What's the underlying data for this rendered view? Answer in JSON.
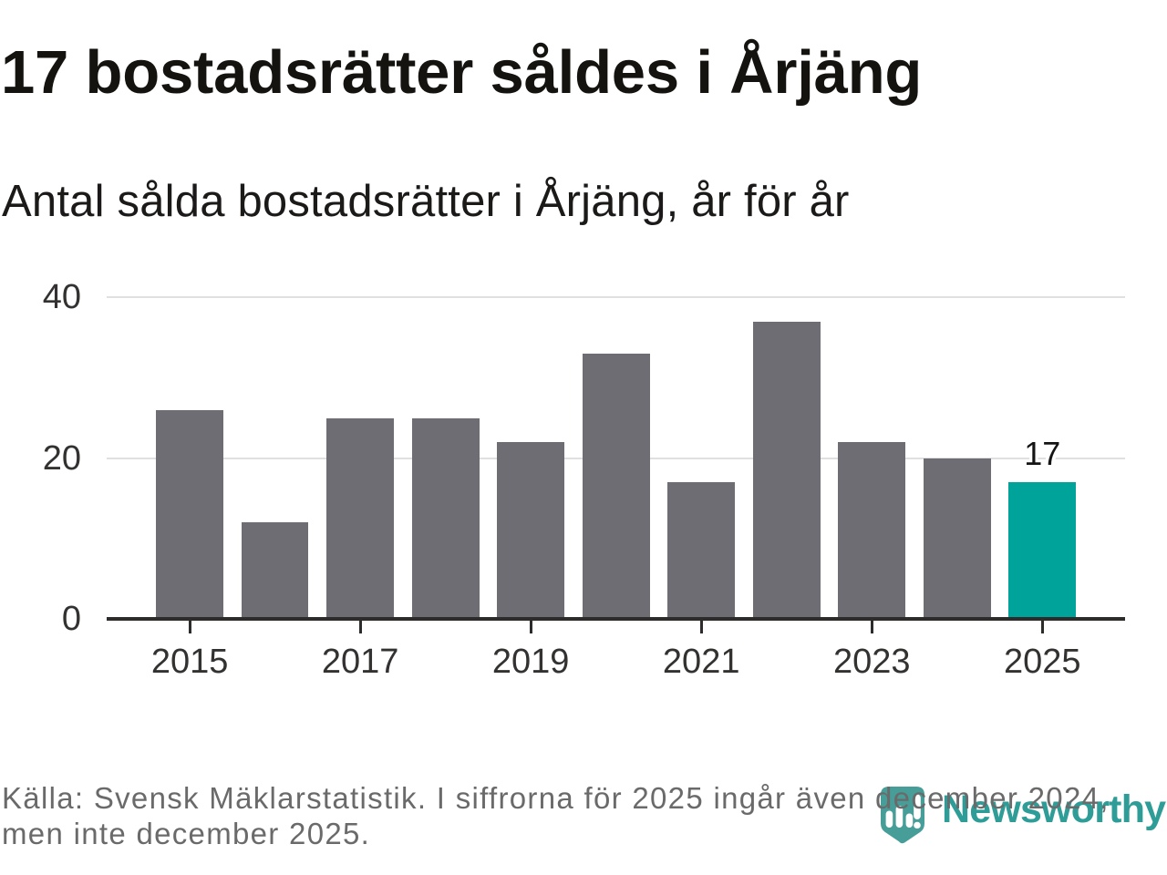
{
  "title": "17 bostadsrätter såldes i Årjäng",
  "subtitle": "Antal sålda bostadsrätter i Årjäng, år för år",
  "footer": {
    "source_lines": [
      "Källa: Svensk Mäklarstatistik. I siffrorna för 2025 ingår även december 2024,",
      "men inte december 2025."
    ]
  },
  "logo": {
    "wordmark": "Newsworthy",
    "icon": "newsworthy-speech-bubble-bar-chart-icon"
  },
  "chart_data": {
    "type": "bar",
    "title": "17 bostadsrätter såldes i Årjäng",
    "subtitle": "Antal sålda bostadsrätter i Årjäng, år för år",
    "categories": [
      2015,
      2016,
      2017,
      2018,
      2019,
      2020,
      2021,
      2022,
      2023,
      2024,
      2025
    ],
    "values": [
      26,
      12,
      25,
      25,
      22,
      33,
      17,
      37,
      22,
      20,
      17
    ],
    "highlighted_category": 2025,
    "bar_label": {
      "category": 2025,
      "text": "17"
    },
    "xlabel": "",
    "ylabel": "",
    "ylim": [
      0,
      40
    ],
    "yticks": [
      0,
      20,
      40
    ],
    "xticks": [
      2015,
      2017,
      2019,
      2021,
      2023,
      2025
    ],
    "grid": "horizontal",
    "legend": "none"
  },
  "colors": {
    "bar_default": "#6e6d73",
    "bar_highlight": "#00a399",
    "gridline": "#e0e0e0",
    "axis": "#2d2c2b",
    "tick_label": "#333230",
    "title": "#151310",
    "subtitle": "#1c1a19",
    "footer_text": "#6a6a6a",
    "logo_teal": "#2f9d97",
    "logo_icon_teal": "#479e99",
    "background": "#ffffff"
  }
}
